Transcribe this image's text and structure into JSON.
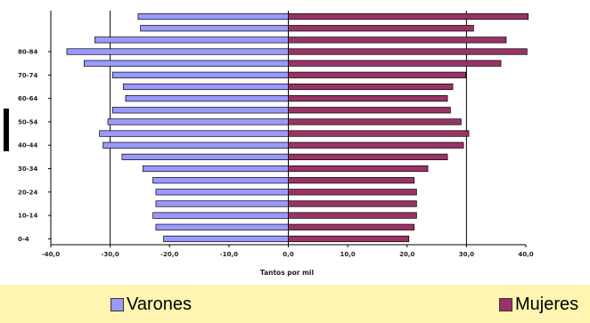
{
  "chart_data": {
    "type": "bar",
    "orientation": "horizontal",
    "xlabel": "Tantos por mil",
    "x_ticks": [
      "-40,0",
      "-30,0",
      "-20,0",
      "-10,0",
      "0,0",
      "10,0",
      "20,0",
      "30,0",
      "40,0"
    ],
    "x_tick_values": [
      -40,
      -30,
      -20,
      -10,
      0,
      10,
      20,
      30,
      40
    ],
    "xlim": [
      -40,
      40
    ],
    "y_tick_labels": [
      "0-4",
      "10-14",
      "20-24",
      "30-34",
      "40-44",
      "50-54",
      "60-64",
      "70-74",
      "80-84"
    ],
    "grid": "vertical lines at -30, 0 and 30",
    "legend_position": "bottom",
    "series": [
      {
        "name": "Varones",
        "color": "#9999ff",
        "values": [
          -21,
          -22.3,
          -22.8,
          -22.3,
          -22.3,
          -22.8,
          -24.5,
          -28,
          -31.2,
          -31.8,
          -30.4,
          -29.6,
          -27.4,
          -27.8,
          -29.6,
          -34.4,
          -37.3,
          -32.6,
          -24.9,
          -25.3
        ]
      },
      {
        "name": "Mujeres",
        "color": "#993366",
        "values": [
          20.3,
          21.2,
          21.6,
          21.6,
          21.6,
          21.2,
          23.5,
          26.8,
          29.5,
          30.4,
          29.1,
          27.3,
          26.8,
          27.7,
          29.9,
          35.8,
          40.2,
          36.7,
          31.2,
          40.4
        ]
      }
    ]
  },
  "side_marker_color": "#000000"
}
